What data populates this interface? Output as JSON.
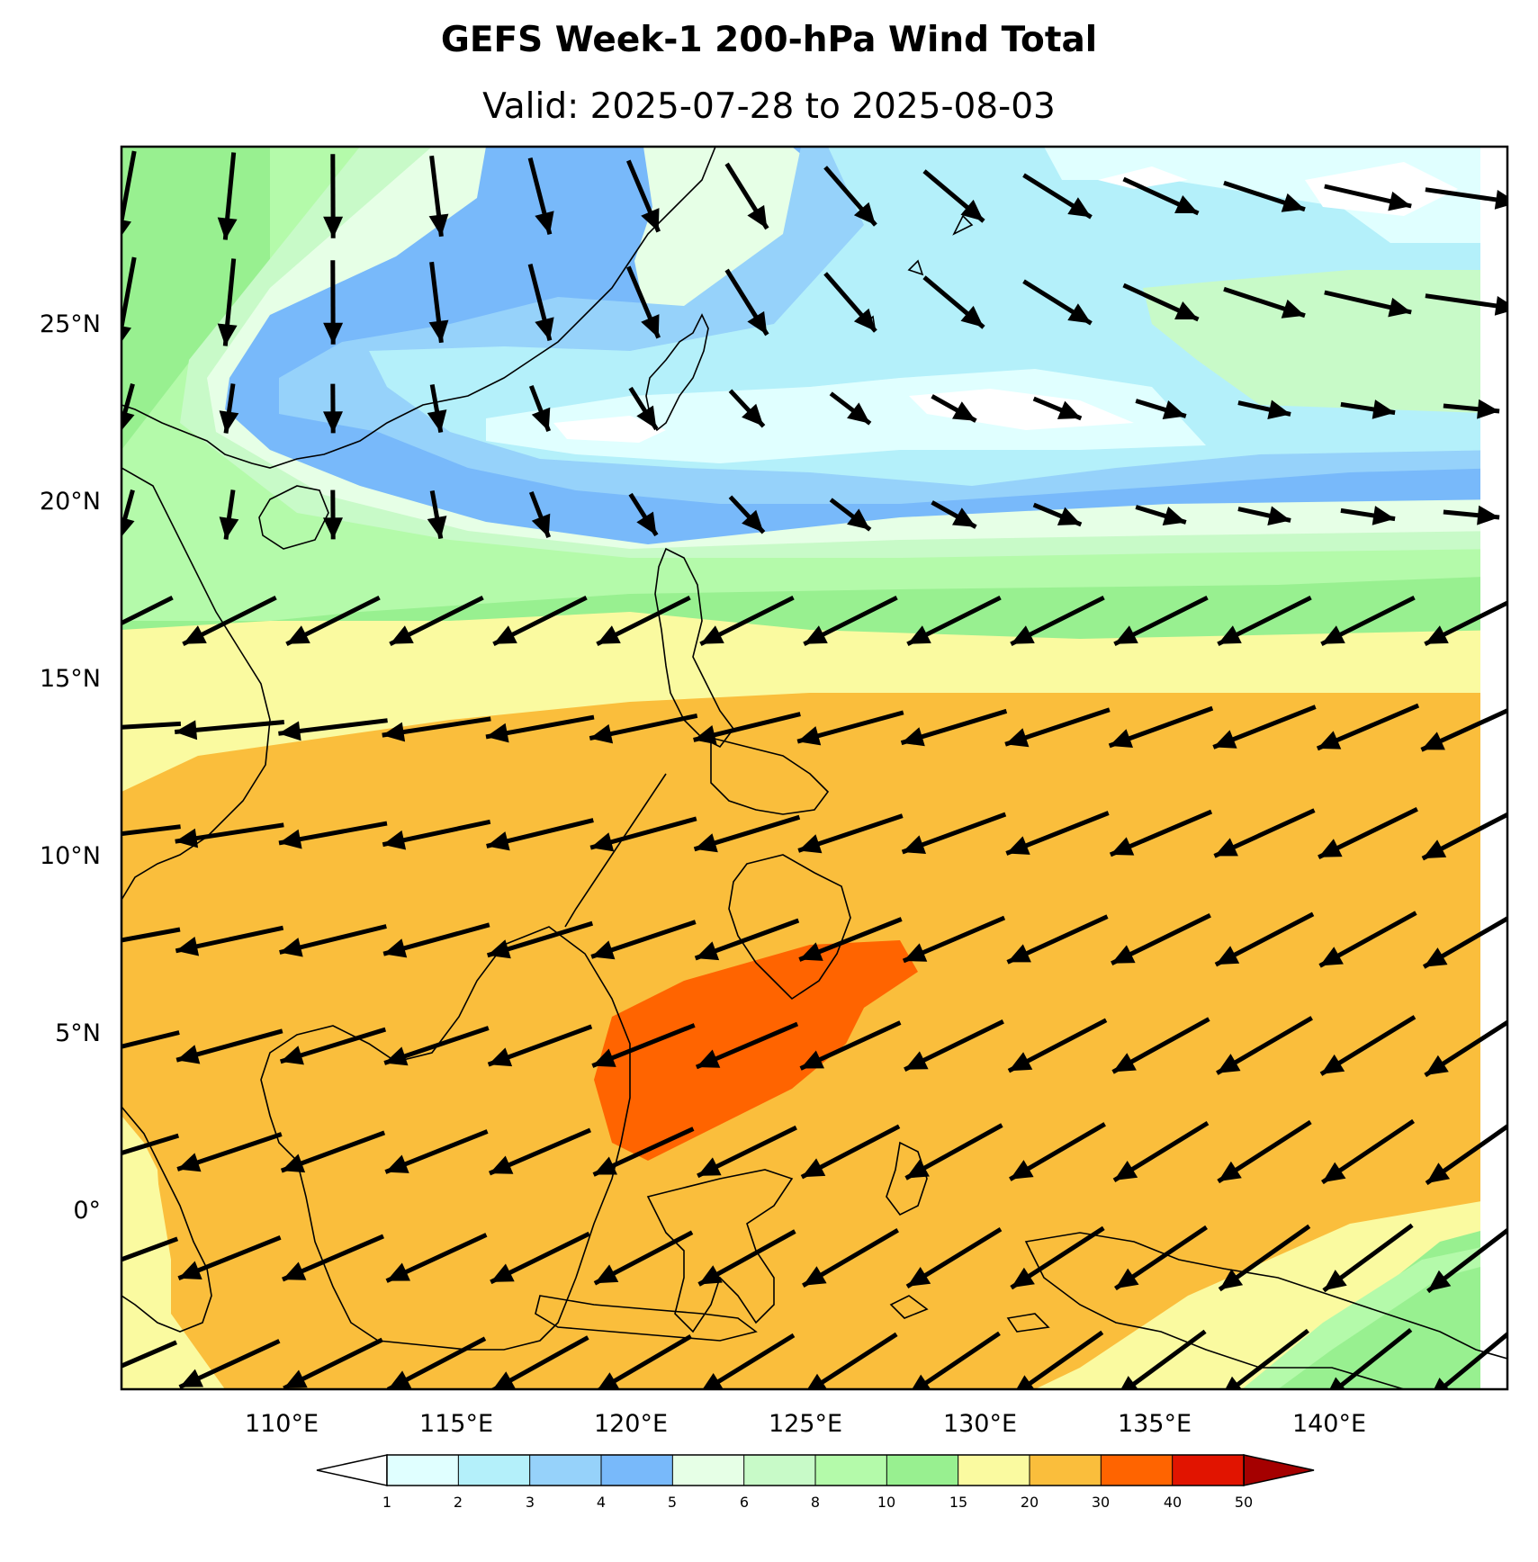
{
  "title": "GEFS Week-1 200-hPa Wind Total",
  "subtitle": "Valid: 2025-07-28 to 2025-08-03",
  "map": {
    "lon_range": [
      105.5,
      145
    ],
    "lat_range": [
      -5,
      30
    ],
    "x_ticks": [
      "110°E",
      "115°E",
      "120°E",
      "125°E",
      "130°E",
      "135°E",
      "140°E"
    ],
    "x_tick_values": [
      110,
      115,
      120,
      125,
      130,
      135,
      140
    ],
    "y_ticks": [
      "25°N",
      "20°N",
      "15°N",
      "10°N",
      "5°N",
      "0°"
    ],
    "y_tick_values": [
      25,
      20,
      15,
      10,
      5,
      0
    ]
  },
  "colorbar": {
    "levels": [
      "1",
      "2",
      "3",
      "4",
      "5",
      "6",
      "8",
      "10",
      "15",
      "20",
      "30",
      "40",
      "50"
    ],
    "colors": [
      "#e0ffff",
      "#b4f0fa",
      "#96d2fa",
      "#78b9fa",
      "#e6ffe6",
      "#c8fac8",
      "#b4faaa",
      "#98f090",
      "#fafaa0",
      "#fabe3c",
      "#ff6400",
      "#e11400",
      "#a50000"
    ],
    "under_color": "#ffffff",
    "over_color": "#a50000"
  },
  "legend_colors": {
    "coastline": "#000000",
    "vectors": "#000000"
  }
}
